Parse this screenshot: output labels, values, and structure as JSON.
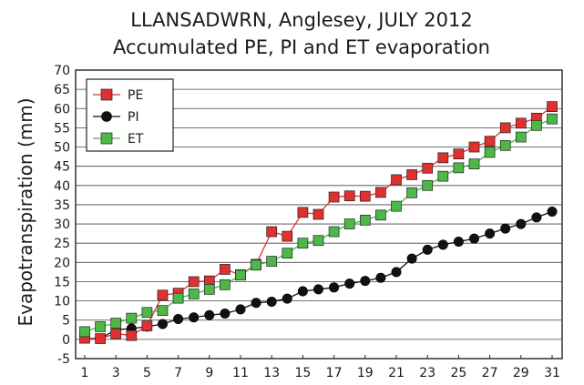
{
  "chart_data": {
    "type": "line",
    "title": "LLANSADWRN, Anglesey, JULY 2012",
    "subtitle": "Accumulated PE, PI and ET evaporation",
    "xlabel": "",
    "ylabel": "Evapotranspiration (mm)",
    "xlim": [
      1,
      31
    ],
    "ylim": [
      -5,
      70
    ],
    "x_ticks": [
      "1",
      "3",
      "5",
      "7",
      "9",
      "11",
      "13",
      "15",
      "17",
      "19",
      "21",
      "23",
      "25",
      "27",
      "29",
      "31"
    ],
    "y_ticks": [
      "-5",
      "0",
      "5",
      "10",
      "15",
      "20",
      "25",
      "30",
      "35",
      "40",
      "45",
      "50",
      "55",
      "60",
      "65",
      "70"
    ],
    "grid": "horizontal",
    "legend_position": "top-left",
    "x": [
      1,
      2,
      3,
      4,
      5,
      6,
      7,
      8,
      9,
      10,
      11,
      12,
      13,
      14,
      15,
      16,
      17,
      18,
      19,
      20,
      21,
      22,
      23,
      24,
      25,
      26,
      27,
      28,
      29,
      30,
      31
    ],
    "series": [
      {
        "name": "PE",
        "color": "#e03030",
        "marker": "square",
        "values": [
          0.3,
          0.2,
          1.5,
          1.0,
          3.5,
          11.5,
          12.0,
          15.0,
          15.2,
          18.2,
          16.8,
          19.5,
          28.0,
          26.8,
          33.0,
          32.5,
          37.0,
          37.3,
          37.2,
          38.2,
          41.5,
          42.8,
          44.5,
          47.2,
          48.2,
          50.0,
          51.5,
          55.0,
          56.2,
          57.5,
          60.5
        ]
      },
      {
        "name": "PI",
        "color": "#111111",
        "marker": "circle",
        "values": [
          0.3,
          0.2,
          2.5,
          2.8,
          3.3,
          4.0,
          5.3,
          5.7,
          6.3,
          6.7,
          7.8,
          9.5,
          9.8,
          10.6,
          12.5,
          13.0,
          13.5,
          14.5,
          15.2,
          16.0,
          17.5,
          21.0,
          23.3,
          24.6,
          25.4,
          26.2,
          27.5,
          28.8,
          30.0,
          31.7,
          33.2
        ]
      },
      {
        "name": "ET",
        "color": "#4db848",
        "marker": "square",
        "values": [
          2.0,
          3.3,
          4.2,
          5.5,
          7.0,
          7.5,
          10.7,
          11.8,
          13.0,
          14.2,
          16.7,
          19.3,
          20.3,
          22.4,
          25.0,
          25.7,
          28.0,
          30.0,
          31.0,
          32.3,
          34.6,
          38.1,
          40.0,
          42.4,
          44.6,
          45.6,
          48.6,
          50.4,
          52.6,
          55.6,
          57.3
        ]
      }
    ]
  }
}
